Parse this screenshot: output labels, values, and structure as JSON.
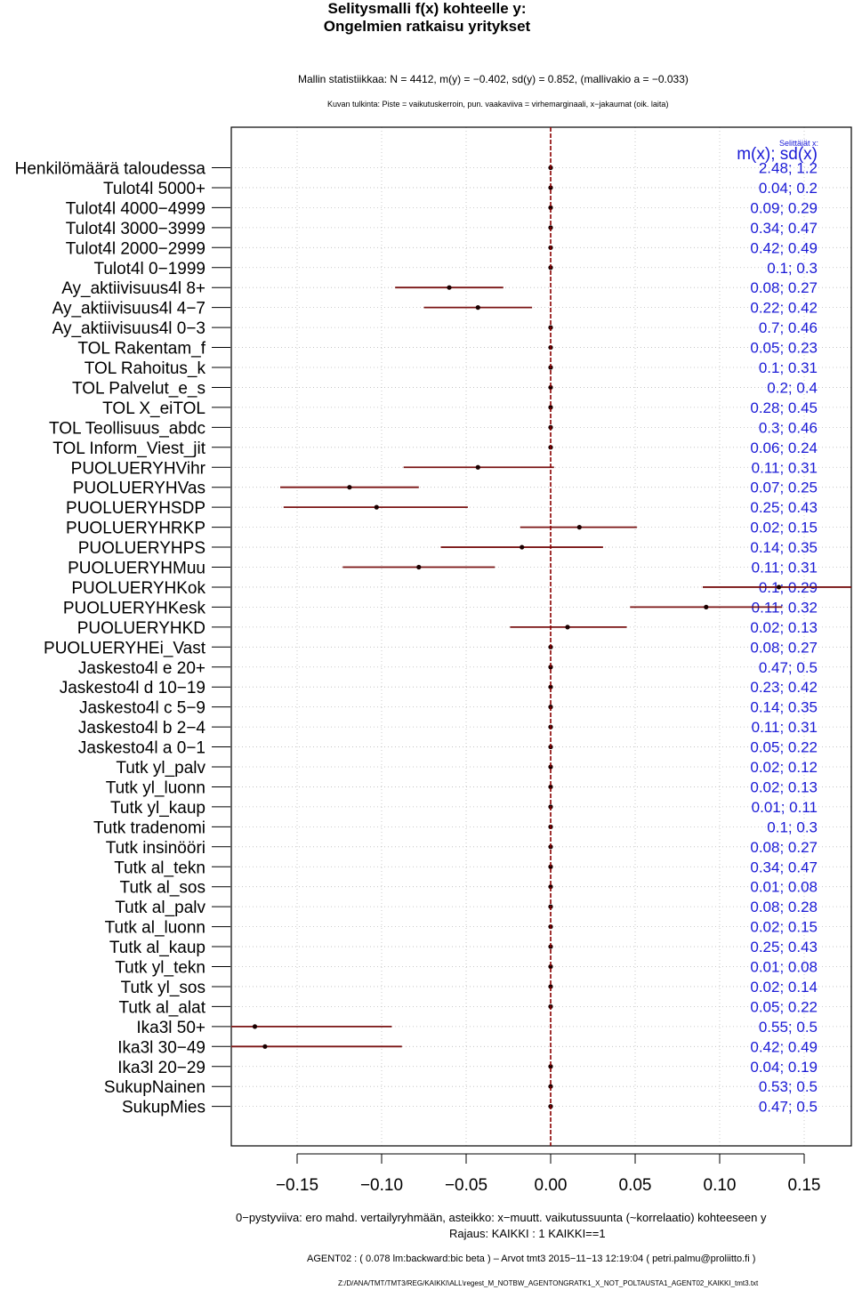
{
  "title_line1": "Selitysmalli f(x) kohteelle y:",
  "title_line2": "Ongelmien ratkaisu yritykset",
  "stats_text": "Mallin statistiikkaa: N = 4412, m(y) = −0.402, sd(y) = 0.852, (mallivakio a = −0.033)",
  "interpretation_text": "Kuvan tulkinta: Piste = vaikutuskerroin, pun. vaakaviiva = virhemarginaali, x−jakaumat (oik. laita)",
  "explainers_label": "Selittäjät x:",
  "stats_header": "m(x); sd(x)",
  "footer_line1": "0−pystyviiva: ero mahd. vertailyryhmään, asteikko: x−muutt. vaikutussuunta (~korrelaatio) kohteeseen y",
  "footer_line2": "Rajaus: KAIKKI : 1  KAIKKI==1",
  "footer_line3": "AGENT02 : ( 0.078 lm:backward:bic beta )  –  Arvot tmt3 2015−11−13 12:19:04 ( petri.palmu@proliitto.fi )",
  "footer_line4": "Z:/D/ANA/TMT/TMT3/REG/KAIKKI\\ALL\\regest_M_NOTBW_AGENTONGRATK1_X_NOT_POLTAUSTA1_AGENT02_KAIKKI_tmt3.txt",
  "colors": {
    "line": "#7a1414",
    "point": "#1a0000",
    "zero": "#8b0000",
    "stat": "#1a1ad6",
    "grid": "#bbbbbb"
  },
  "chart_data": {
    "type": "forest",
    "xlim": [
      -0.19,
      0.18
    ],
    "x_ticks": [
      -0.15,
      -0.1,
      -0.05,
      0.0,
      0.05,
      0.1,
      0.15
    ],
    "x_tick_labels": [
      "−0.15",
      "−0.10",
      "−0.05",
      "0.00",
      "0.05",
      "0.10",
      "0.15"
    ],
    "rows": [
      {
        "label": "Henkilömäärä taloudessa",
        "est": 0.0,
        "lo": 0.0,
        "hi": 0.0,
        "stat": "2.48; 1.2"
      },
      {
        "label": "Tulot4l 5000+",
        "est": 0.0,
        "lo": 0.0,
        "hi": 0.0,
        "stat": "0.04; 0.2"
      },
      {
        "label": "Tulot4l 4000−4999",
        "est": 0.0,
        "lo": 0.0,
        "hi": 0.0,
        "stat": "0.09; 0.29"
      },
      {
        "label": "Tulot4l 3000−3999",
        "est": 0.0,
        "lo": 0.0,
        "hi": 0.0,
        "stat": "0.34; 0.47"
      },
      {
        "label": "Tulot4l 2000−2999",
        "est": 0.0,
        "lo": 0.0,
        "hi": 0.0,
        "stat": "0.42; 0.49"
      },
      {
        "label": "Tulot4l 0−1999",
        "est": 0.0,
        "lo": 0.0,
        "hi": 0.0,
        "stat": "0.1; 0.3"
      },
      {
        "label": "Ay_aktiivisuus4l 8+",
        "est": -0.06,
        "lo": -0.092,
        "hi": -0.028,
        "stat": "0.08; 0.27"
      },
      {
        "label": "Ay_aktiivisuus4l 4−7",
        "est": -0.043,
        "lo": -0.075,
        "hi": -0.011,
        "stat": "0.22; 0.42"
      },
      {
        "label": "Ay_aktiivisuus4l 0−3",
        "est": 0.0,
        "lo": 0.0,
        "hi": 0.0,
        "stat": "0.7; 0.46"
      },
      {
        "label": "TOL Rakentam_f",
        "est": 0.0,
        "lo": 0.0,
        "hi": 0.0,
        "stat": "0.05; 0.23"
      },
      {
        "label": "TOL Rahoitus_k",
        "est": 0.0,
        "lo": 0.0,
        "hi": 0.0,
        "stat": "0.1; 0.31"
      },
      {
        "label": "TOL Palvelut_e_s",
        "est": 0.0,
        "lo": 0.0,
        "hi": 0.0,
        "stat": "0.2; 0.4"
      },
      {
        "label": "TOL X_eiTOL",
        "est": 0.0,
        "lo": 0.0,
        "hi": 0.0,
        "stat": "0.28; 0.45"
      },
      {
        "label": "TOL Teollisuus_abdc",
        "est": 0.0,
        "lo": 0.0,
        "hi": 0.0,
        "stat": "0.3; 0.46"
      },
      {
        "label": "TOL Inform_Viest_jit",
        "est": 0.0,
        "lo": 0.0,
        "hi": 0.0,
        "stat": "0.06; 0.24"
      },
      {
        "label": "PUOLUERYHVihr",
        "est": -0.043,
        "lo": -0.087,
        "hi": 0.002,
        "stat": "0.11; 0.31"
      },
      {
        "label": "PUOLUERYHVas",
        "est": -0.119,
        "lo": -0.16,
        "hi": -0.078,
        "stat": "0.07; 0.25"
      },
      {
        "label": "PUOLUERYHSDP",
        "est": -0.103,
        "lo": -0.158,
        "hi": -0.049,
        "stat": "0.25; 0.43"
      },
      {
        "label": "PUOLUERYHRKP",
        "est": 0.017,
        "lo": -0.018,
        "hi": 0.051,
        "stat": "0.02; 0.15"
      },
      {
        "label": "PUOLUERYHPS",
        "est": -0.017,
        "lo": -0.065,
        "hi": 0.031,
        "stat": "0.14; 0.35"
      },
      {
        "label": "PUOLUERYHMuu",
        "est": -0.078,
        "lo": -0.123,
        "hi": -0.033,
        "stat": "0.11; 0.31"
      },
      {
        "label": "PUOLUERYHKok",
        "est": 0.135,
        "lo": 0.09,
        "hi": 0.18,
        "stat": "0.1; 0.29"
      },
      {
        "label": "PUOLUERYHKesk",
        "est": 0.092,
        "lo": 0.047,
        "hi": 0.137,
        "stat": "0.11; 0.32"
      },
      {
        "label": "PUOLUERYHKD",
        "est": 0.01,
        "lo": -0.024,
        "hi": 0.045,
        "stat": "0.02; 0.13"
      },
      {
        "label": "PUOLUERYHEi_Vast",
        "est": 0.0,
        "lo": 0.0,
        "hi": 0.0,
        "stat": "0.08; 0.27"
      },
      {
        "label": "Jaskesto4l e 20+",
        "est": 0.0,
        "lo": 0.0,
        "hi": 0.0,
        "stat": "0.47; 0.5"
      },
      {
        "label": "Jaskesto4l d 10−19",
        "est": 0.0,
        "lo": 0.0,
        "hi": 0.0,
        "stat": "0.23; 0.42"
      },
      {
        "label": "Jaskesto4l c 5−9",
        "est": 0.0,
        "lo": 0.0,
        "hi": 0.0,
        "stat": "0.14; 0.35"
      },
      {
        "label": "Jaskesto4l b 2−4",
        "est": 0.0,
        "lo": 0.0,
        "hi": 0.0,
        "stat": "0.11; 0.31"
      },
      {
        "label": "Jaskesto4l a 0−1",
        "est": 0.0,
        "lo": 0.0,
        "hi": 0.0,
        "stat": "0.05; 0.22"
      },
      {
        "label": "Tutk yl_palv",
        "est": 0.0,
        "lo": 0.0,
        "hi": 0.0,
        "stat": "0.02; 0.12"
      },
      {
        "label": "Tutk yl_luonn",
        "est": 0.0,
        "lo": 0.0,
        "hi": 0.0,
        "stat": "0.02; 0.13"
      },
      {
        "label": "Tutk yl_kaup",
        "est": 0.0,
        "lo": 0.0,
        "hi": 0.0,
        "stat": "0.01; 0.11"
      },
      {
        "label": "Tutk tradenomi",
        "est": 0.0,
        "lo": 0.0,
        "hi": 0.0,
        "stat": "0.1; 0.3"
      },
      {
        "label": "Tutk insinööri",
        "est": 0.0,
        "lo": 0.0,
        "hi": 0.0,
        "stat": "0.08; 0.27"
      },
      {
        "label": "Tutk al_tekn",
        "est": 0.0,
        "lo": 0.0,
        "hi": 0.0,
        "stat": "0.34; 0.47"
      },
      {
        "label": "Tutk al_sos",
        "est": 0.0,
        "lo": 0.0,
        "hi": 0.0,
        "stat": "0.01; 0.08"
      },
      {
        "label": "Tutk al_palv",
        "est": 0.0,
        "lo": 0.0,
        "hi": 0.0,
        "stat": "0.08; 0.28"
      },
      {
        "label": "Tutk al_luonn",
        "est": 0.0,
        "lo": 0.0,
        "hi": 0.0,
        "stat": "0.02; 0.15"
      },
      {
        "label": "Tutk al_kaup",
        "est": 0.0,
        "lo": 0.0,
        "hi": 0.0,
        "stat": "0.25; 0.43"
      },
      {
        "label": "Tutk yl_tekn",
        "est": 0.0,
        "lo": 0.0,
        "hi": 0.0,
        "stat": "0.01; 0.08"
      },
      {
        "label": "Tutk yl_sos",
        "est": 0.0,
        "lo": 0.0,
        "hi": 0.0,
        "stat": "0.02; 0.14"
      },
      {
        "label": "Tutk al_alat",
        "est": 0.0,
        "lo": 0.0,
        "hi": 0.0,
        "stat": "0.05; 0.22"
      },
      {
        "label": "Ika3l 50+",
        "est": -0.175,
        "lo": -0.207,
        "hi": -0.094,
        "stat": "0.55; 0.5"
      },
      {
        "label": "Ika3l 30−49",
        "est": -0.169,
        "lo": -0.207,
        "hi": -0.088,
        "stat": "0.42; 0.49"
      },
      {
        "label": "Ika3l 20−29",
        "est": 0.0,
        "lo": 0.0,
        "hi": 0.0,
        "stat": "0.04; 0.19"
      },
      {
        "label": "SukupNainen",
        "est": 0.0,
        "lo": 0.0,
        "hi": 0.0,
        "stat": "0.53; 0.5"
      },
      {
        "label": "SukupMies",
        "est": 0.0,
        "lo": 0.0,
        "hi": 0.0,
        "stat": "0.47; 0.5"
      }
    ]
  }
}
